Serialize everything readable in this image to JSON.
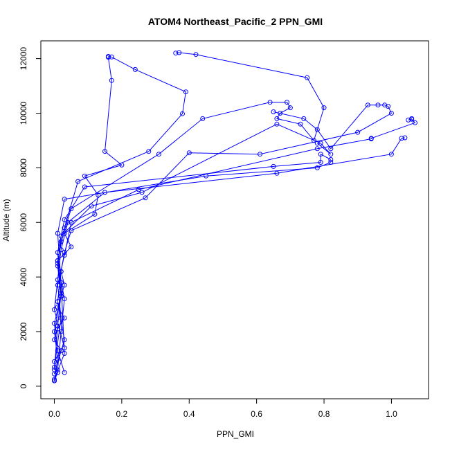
{
  "chart_data": {
    "type": "line",
    "title": "ATOM4 Northeast_Pacific_2 PPN_GMI",
    "xlabel": "PPN_GMI",
    "ylabel": "Altitude (m)",
    "xlim": [
      -0.04,
      1.11
    ],
    "ylim": [
      -460,
      12650
    ],
    "x_ticks": [
      0,
      0.2,
      0.4,
      0.6,
      0.8,
      1.0
    ],
    "x_tick_labels": [
      "0.0",
      "0.2",
      "0.4",
      "0.6",
      "0.8",
      "1.0"
    ],
    "y_ticks": [
      0,
      2000,
      4000,
      6000,
      8000,
      10000,
      12000
    ],
    "y_tick_labels": [
      "0",
      "2000",
      "4000",
      "6000",
      "8000",
      "10000",
      "12000"
    ],
    "grid": false,
    "color": "#0000ff",
    "series": [
      {
        "x": [
          0.0,
          0.01,
          0.0,
          0.02,
          0.0,
          0.01,
          0.03,
          0.01,
          0.02,
          0.03,
          0.02,
          0.01,
          0.05,
          0.03,
          0.12,
          0.13,
          0.09,
          0.2,
          0.15,
          0.17,
          0.16
        ],
        "y": [
          200,
          500,
          900,
          1300,
          1700,
          2100,
          2500,
          2900,
          3300,
          3700,
          4200,
          4600,
          5100,
          5600,
          6300,
          7000,
          7700,
          8100,
          8600,
          11200,
          12050
        ]
      },
      {
        "x": [
          0.16,
          0.17,
          0.24,
          0.39,
          0.38,
          0.28,
          0.07,
          0.03,
          0.01,
          0.02,
          0.0,
          0.01,
          0.0
        ],
        "y": [
          12080,
          12060,
          11600,
          10780,
          9980,
          8600,
          7500,
          5800,
          4600,
          3300,
          2000,
          1000,
          200
        ]
      },
      {
        "x": [
          0.36,
          0.37,
          0.42,
          0.75,
          0.8,
          0.77,
          0.73,
          0.66,
          0.67,
          0.7,
          0.69,
          0.64,
          0.44,
          0.31,
          0.05,
          0.02,
          0.01,
          0.03,
          0.02,
          0.01
        ],
        "y": [
          12200,
          12220,
          12150,
          11300,
          10200,
          9000,
          9600,
          9800,
          10000,
          10200,
          10400,
          10400,
          9800,
          8500,
          6500,
          5300,
          4500,
          3200,
          2000,
          600
        ]
      },
      {
        "x": [
          0.65,
          0.74,
          0.78,
          0.82,
          0.93,
          0.96,
          0.98,
          0.99,
          1.0,
          0.9,
          0.61,
          0.4,
          0.27,
          0.05,
          0.03,
          0.02,
          0.01,
          0.03,
          0.0
        ],
        "y": [
          10050,
          9800,
          9400,
          8700,
          10300,
          10300,
          10300,
          10250,
          10000,
          9300,
          8500,
          8550,
          6900,
          5700,
          4900,
          4200,
          3100,
          1700,
          450
        ]
      },
      {
        "x": [
          0.78,
          0.82,
          0.79,
          0.66,
          0.26,
          0.11,
          0.02,
          0.01,
          0.02,
          0.0,
          0.01,
          0.03
        ],
        "y": [
          8900,
          8500,
          8900,
          9600,
          7100,
          6600,
          5500,
          4400,
          3300,
          2300,
          1300,
          500
        ]
      },
      {
        "x": [
          1.06,
          1.05,
          1.06,
          1.07,
          0.94,
          0.94,
          0.78,
          0.25,
          0.05,
          0.03,
          0.01,
          0.02,
          0.0
        ],
        "y": [
          9800,
          9750,
          9780,
          9650,
          9080,
          9060,
          8700,
          7200,
          6000,
          4800,
          3700,
          2500,
          700
        ]
      },
      {
        "x": [
          1.04,
          1.03,
          1.0,
          0.66,
          0.15,
          0.04,
          0.02,
          0.01,
          0.0,
          0.03
        ],
        "y": [
          9100,
          9080,
          8500,
          7800,
          7100,
          6000,
          5000,
          3900,
          2800,
          1400
        ]
      },
      {
        "x": [
          0.82,
          0.79,
          0.79,
          0.65,
          0.09,
          0.03,
          0.01,
          0.02,
          0.01,
          0.0
        ],
        "y": [
          8300,
          8500,
          8200,
          8050,
          7300,
          6100,
          4900,
          3400,
          2200,
          600
        ]
      },
      {
        "x": [
          0.82,
          0.78,
          0.45,
          0.03,
          0.01,
          0.02,
          0.03,
          0.0
        ],
        "y": [
          8200,
          8000,
          7700,
          6850,
          5600,
          3800,
          1200,
          250
        ]
      }
    ]
  }
}
